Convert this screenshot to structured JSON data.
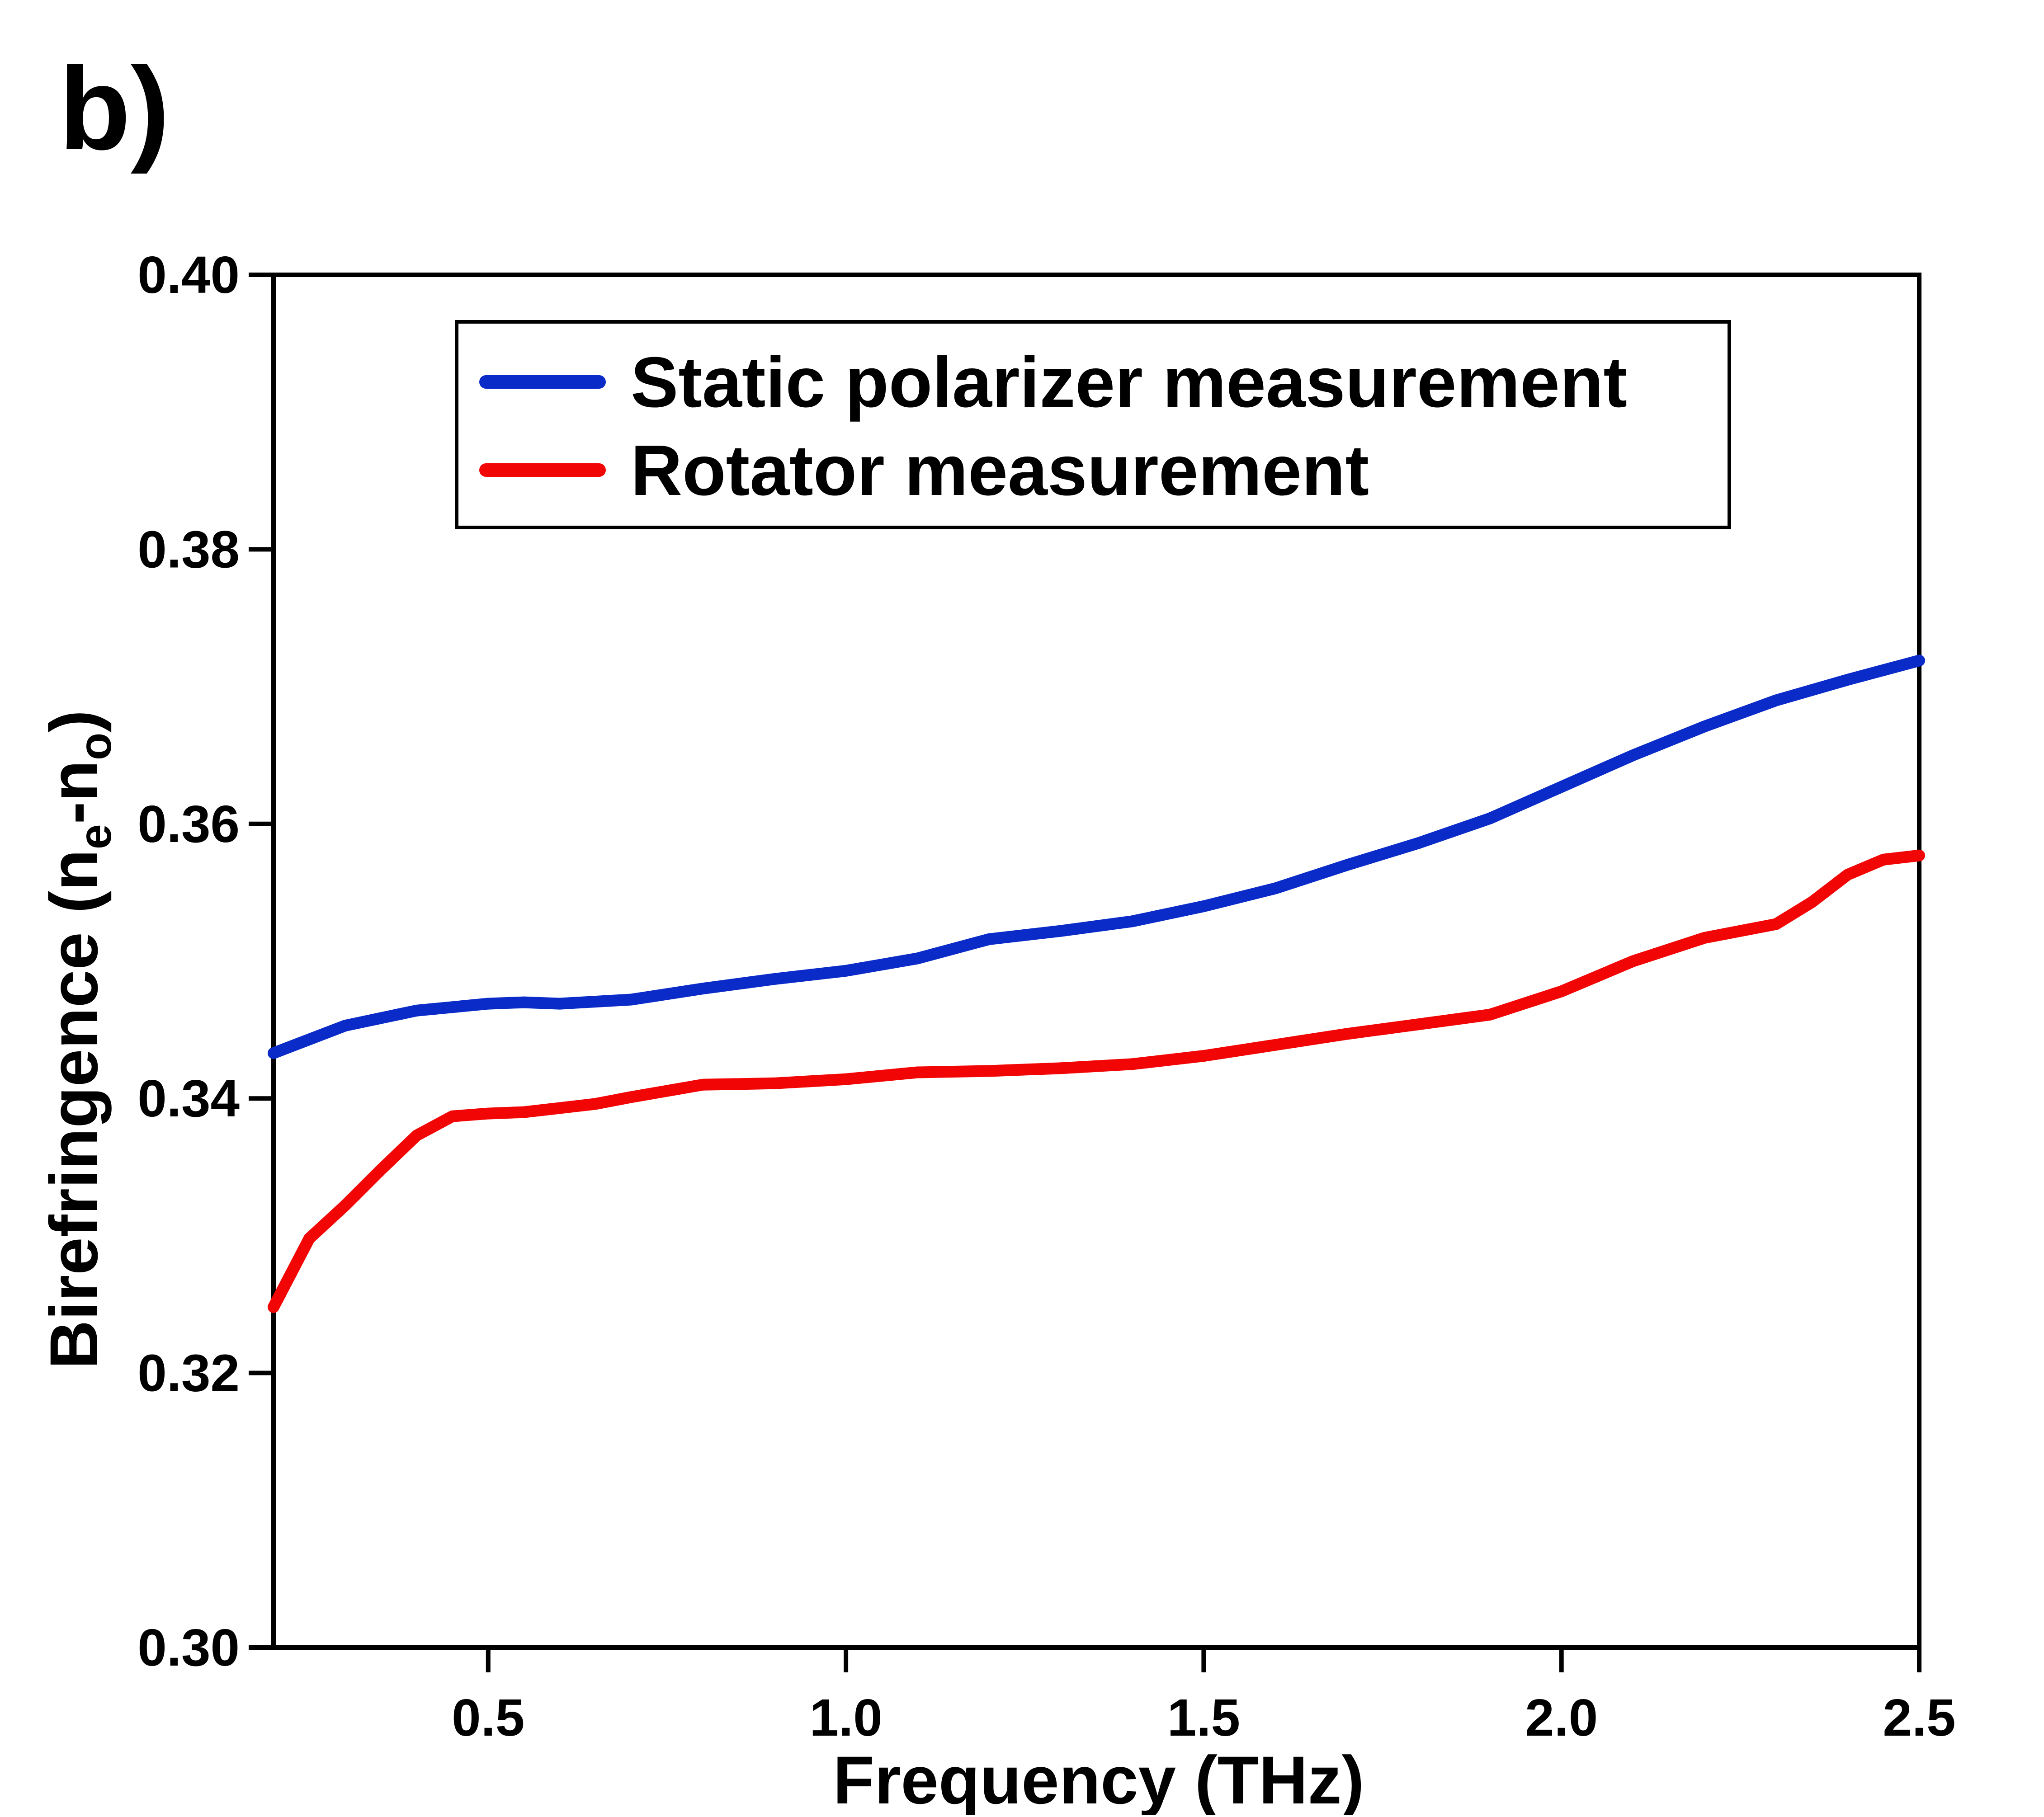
{
  "panel_label": "b)",
  "chart_data": {
    "type": "line",
    "title": "",
    "xlabel": "Frequency (THz)",
    "ylabel": {
      "main": "Birefringence (n",
      "sub1": "e",
      "mid": "-n",
      "sub2": "o",
      "end": ")"
    },
    "xlim": [
      0.2,
      2.5
    ],
    "ylim": [
      0.3,
      0.4
    ],
    "xticks": [
      0.5,
      1.0,
      1.5,
      2.0,
      2.5
    ],
    "xtick_labels": [
      "0.5",
      "1.0",
      "1.5",
      "2.0",
      "2.5"
    ],
    "yticks": [
      0.3,
      0.32,
      0.34,
      0.36,
      0.38,
      0.4
    ],
    "ytick_labels": [
      "0.30",
      "0.32",
      "0.34",
      "0.36",
      "0.38",
      "0.40"
    ],
    "legend_position": "top-center",
    "grid": false,
    "series": [
      {
        "name": "Static polarizer measurement",
        "color": "#0a2bc8",
        "x": [
          0.2,
          0.3,
          0.4,
          0.5,
          0.55,
          0.6,
          0.7,
          0.8,
          0.9,
          1.0,
          1.1,
          1.2,
          1.3,
          1.4,
          1.5,
          1.6,
          1.7,
          1.8,
          1.9,
          2.0,
          2.1,
          2.2,
          2.3,
          2.4,
          2.5
        ],
        "y": [
          0.3433,
          0.3453,
          0.3464,
          0.3469,
          0.347,
          0.3469,
          0.3472,
          0.348,
          0.3487,
          0.3493,
          0.3502,
          0.3516,
          0.3522,
          0.3529,
          0.354,
          0.3553,
          0.357,
          0.3586,
          0.3604,
          0.3627,
          0.365,
          0.3671,
          0.369,
          0.3705,
          0.3719
        ]
      },
      {
        "name": "Rotator measurement",
        "color": "#f20505",
        "x": [
          0.2,
          0.25,
          0.3,
          0.35,
          0.4,
          0.45,
          0.5,
          0.55,
          0.6,
          0.65,
          0.7,
          0.8,
          0.9,
          1.0,
          1.1,
          1.2,
          1.3,
          1.4,
          1.5,
          1.6,
          1.7,
          1.8,
          1.9,
          2.0,
          2.1,
          2.2,
          2.3,
          2.35,
          2.4,
          2.45,
          2.5
        ],
        "y": [
          0.3248,
          0.3298,
          0.3322,
          0.3348,
          0.3373,
          0.3387,
          0.3389,
          0.339,
          0.3393,
          0.3396,
          0.3401,
          0.341,
          0.3411,
          0.3414,
          0.3419,
          0.342,
          0.3422,
          0.3425,
          0.3431,
          0.3439,
          0.3447,
          0.3454,
          0.3461,
          0.3478,
          0.35,
          0.3517,
          0.3527,
          0.3543,
          0.3563,
          0.3574,
          0.3577
        ]
      }
    ]
  }
}
